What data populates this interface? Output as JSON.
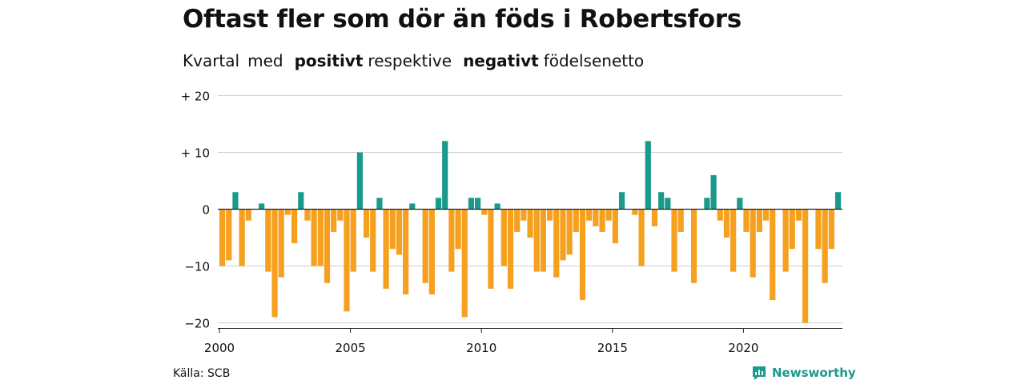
{
  "title": "Oftast fler som dör än föds i Robertsfors",
  "subtitle": {
    "part1": "Kvartal",
    "part2": "med",
    "positive_word": "positivt",
    "part3": "respektive",
    "negative_word": "negativt",
    "part4": "födelsenetto"
  },
  "source": "Källa: SCB",
  "brand": "Newsworthy",
  "colors": {
    "positive": "#1a9a8a",
    "negative": "#f5a01f",
    "grid": "#d0d0d0",
    "axis": "#222222"
  },
  "chart_data": {
    "type": "bar",
    "x_start": 2000.0,
    "x_step": 0.25,
    "ylim": [
      -21,
      20
    ],
    "y_ticks": [
      {
        "value": 20,
        "label": "+ 20"
      },
      {
        "value": 10,
        "label": "+ 10"
      },
      {
        "value": 0,
        "label": "0"
      },
      {
        "value": -10,
        "label": "−10"
      },
      {
        "value": -20,
        "label": "−20"
      }
    ],
    "x_ticks": [
      {
        "value": 2000,
        "label": "2000"
      },
      {
        "value": 2005,
        "label": "2005"
      },
      {
        "value": 2010,
        "label": "2010"
      },
      {
        "value": 2015,
        "label": "2015"
      },
      {
        "value": 2020,
        "label": "2020"
      }
    ],
    "values": [
      -10,
      -9,
      3,
      -10,
      -2,
      0,
      1,
      -11,
      -19,
      -12,
      -1,
      -6,
      3,
      -2,
      -10,
      -10,
      -13,
      -4,
      -2,
      -18,
      -11,
      10,
      -5,
      -11,
      2,
      -14,
      -7,
      -8,
      -15,
      1,
      0,
      -13,
      -15,
      2,
      12,
      -11,
      -7,
      -19,
      2,
      2,
      -1,
      -14,
      1,
      -10,
      -14,
      -4,
      -2,
      -5,
      -11,
      -11,
      -2,
      -12,
      -9,
      -8,
      -4,
      -16,
      -2,
      -3,
      -4,
      -2,
      -6,
      3,
      0,
      -1,
      -10,
      12,
      -3,
      3,
      2,
      -11,
      -4,
      0,
      -13,
      0,
      2,
      6,
      -2,
      -5,
      -11,
      2,
      -4,
      -12,
      -4,
      -2,
      -16,
      0,
      -11,
      -7,
      -2,
      -20,
      0,
      -7,
      -13,
      -7,
      3
    ]
  }
}
